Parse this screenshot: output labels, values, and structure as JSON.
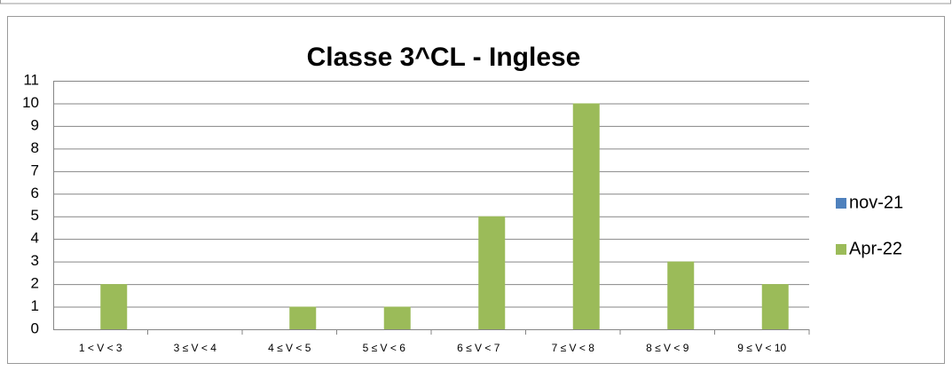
{
  "chart_data": {
    "type": "bar",
    "title": "Classe 3^CL - Inglese",
    "categories": [
      "1 < V < 3",
      "3 ≤ V < 4",
      "4 ≤ V < 5",
      "5 ≤ V < 6",
      "6 ≤ V < 7",
      "7 ≤ V < 8",
      "8 ≤ V < 9",
      "9 ≤ V < 10"
    ],
    "series": [
      {
        "name": "nov-21",
        "color": "#4f81bd",
        "values": [
          0,
          0,
          0,
          0,
          0,
          0,
          0,
          0
        ]
      },
      {
        "name": "Apr-22",
        "color": "#9bbb59",
        "values": [
          2,
          0,
          1,
          1,
          5,
          10,
          3,
          2
        ]
      }
    ],
    "ylim": [
      0,
      11
    ],
    "yticks": [
      0,
      1,
      2,
      3,
      4,
      5,
      6,
      7,
      8,
      9,
      10,
      11
    ],
    "grid": true,
    "legend": "right"
  }
}
